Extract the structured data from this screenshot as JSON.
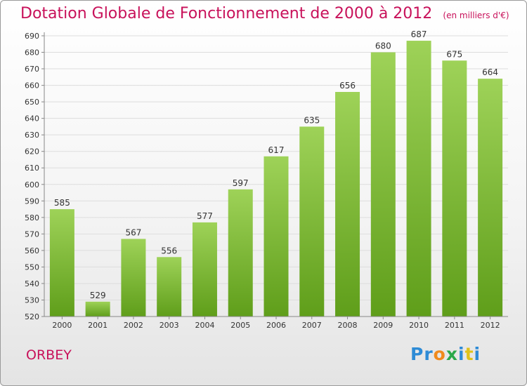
{
  "title": "Dotation Globale de Fonctionnement de 2000 à 2012",
  "unit": "(en milliers d'€)",
  "commune": "ORBEY",
  "logo": {
    "letters": [
      "P",
      "r",
      "o",
      "x",
      "i",
      "t",
      "i"
    ],
    "colors": [
      "#2e8bd6",
      "#2e8bd6",
      "#f08a1c",
      "#2aa84a",
      "#2e8bd6",
      "#e0c21a",
      "#2e8bd6"
    ]
  },
  "colors": {
    "title": "#c8115a",
    "bar_light": "#9ed258",
    "bar_dark": "#5f9e1a",
    "grid": "#dddddd",
    "axis": "#888888"
  },
  "chart_data": {
    "type": "bar",
    "categories": [
      "2000",
      "2001",
      "2002",
      "2003",
      "2004",
      "2005",
      "2006",
      "2007",
      "2008",
      "2009",
      "2010",
      "2011",
      "2012"
    ],
    "values": [
      585,
      529,
      567,
      556,
      577,
      597,
      617,
      635,
      656,
      680,
      687,
      675,
      664
    ],
    "ylim": [
      520,
      690
    ],
    "yticks": [
      520,
      530,
      540,
      550,
      560,
      570,
      580,
      590,
      600,
      610,
      620,
      630,
      640,
      650,
      660,
      670,
      680,
      690
    ],
    "grid": true,
    "legend": "none"
  }
}
